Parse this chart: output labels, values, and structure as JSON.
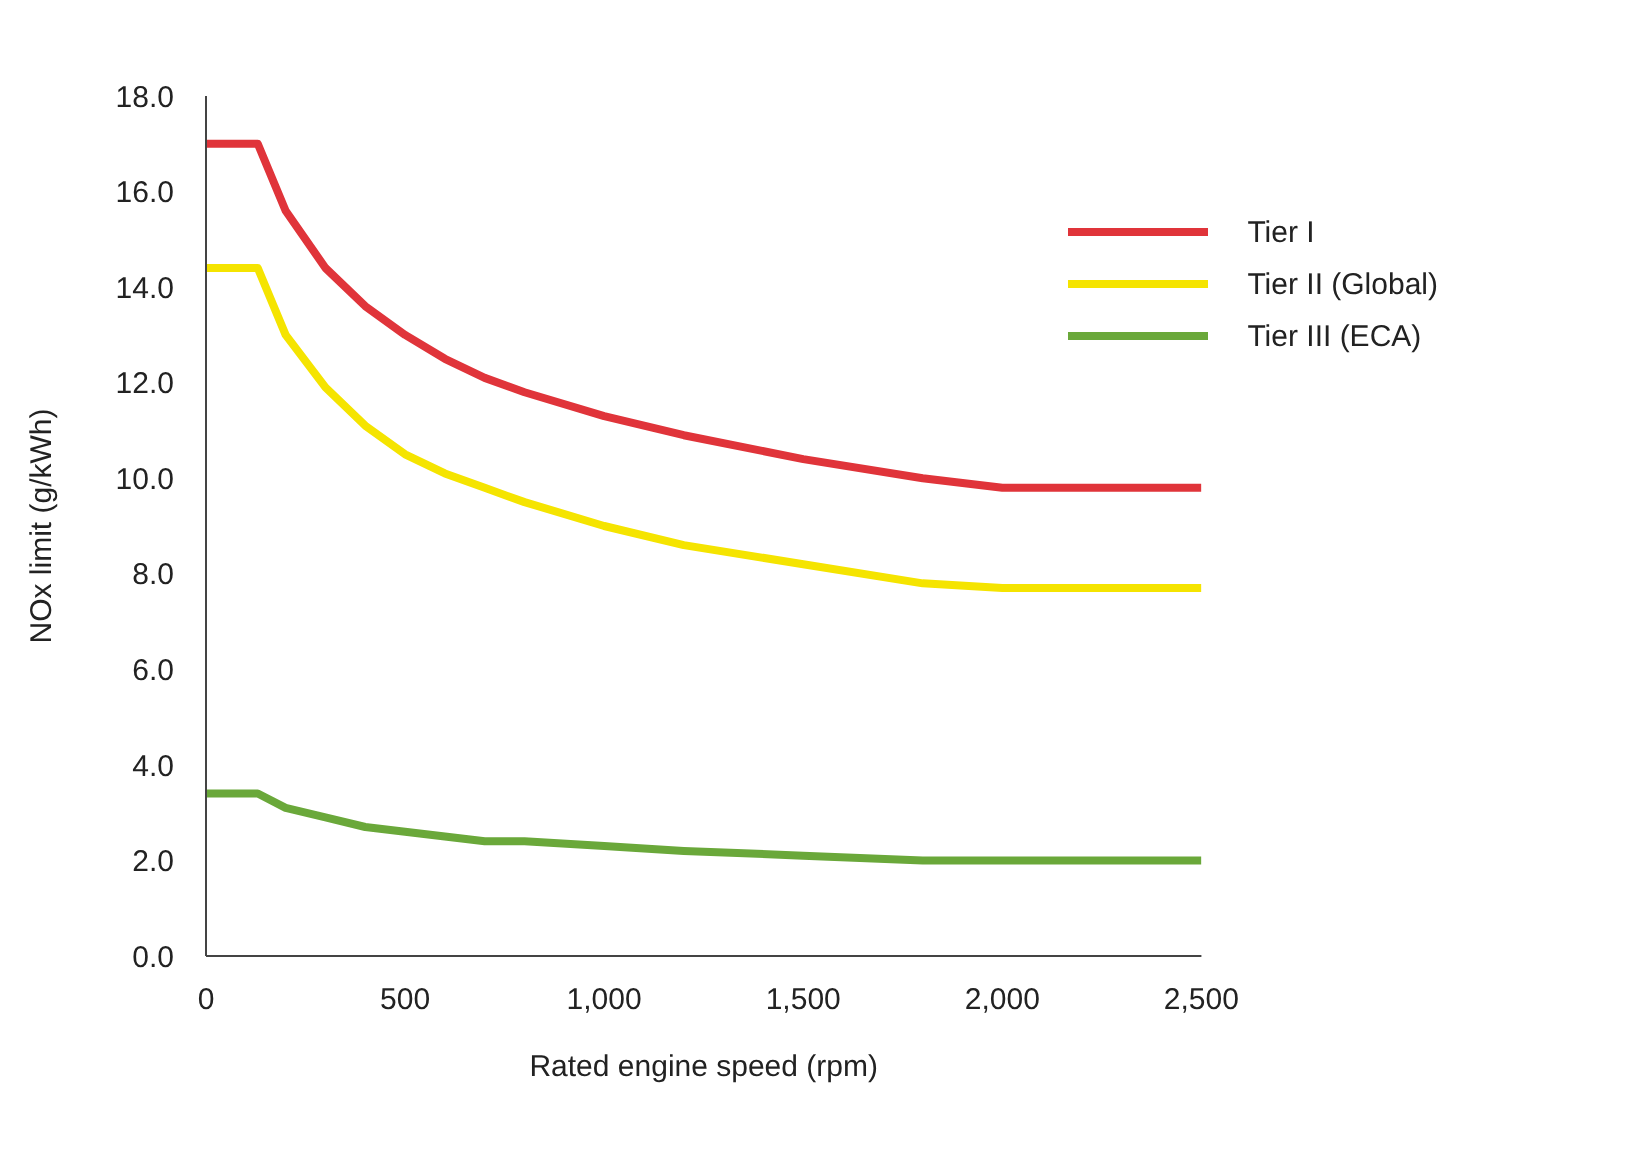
{
  "chart_data": {
    "type": "line",
    "xlabel": "Rated engine speed (rpm)",
    "ylabel": "NOx limit (g/kWh)",
    "xlim": [
      0,
      2500
    ],
    "xticks": [
      0,
      500,
      {
        "value": 1000,
        "label": "1,000"
      },
      {
        "value": 1500,
        "label": "1,500"
      },
      {
        "value": 2000,
        "label": "2,000"
      },
      {
        "value": 2500,
        "label": "2,500"
      }
    ],
    "ylim": [
      0,
      18
    ],
    "yticks": [
      {
        "value": 0,
        "label": "0.0"
      },
      {
        "value": 2,
        "label": "2.0"
      },
      {
        "value": 4,
        "label": "4.0"
      },
      {
        "value": 6,
        "label": "6.0"
      },
      {
        "value": 8,
        "label": "8.0"
      },
      {
        "value": 10,
        "label": "10.0"
      },
      {
        "value": 12,
        "label": "12.0"
      },
      {
        "value": 14,
        "label": "14.0"
      },
      {
        "value": 16,
        "label": "16.0"
      },
      {
        "value": 18,
        "label": "18.0"
      }
    ],
    "x": [
      0,
      130,
      200,
      300,
      400,
      500,
      600,
      700,
      800,
      1000,
      1200,
      1500,
      1800,
      2000,
      2500
    ],
    "series": [
      {
        "name": "Tier I",
        "color": "#e0343a",
        "values": [
          17.0,
          17.0,
          15.6,
          14.4,
          13.6,
          13.0,
          12.5,
          12.1,
          11.8,
          11.3,
          10.9,
          10.4,
          10.0,
          9.8,
          9.8
        ]
      },
      {
        "name": "Tier II (Global)",
        "color": "#f5e400",
        "values": [
          14.4,
          14.4,
          13.0,
          11.9,
          11.1,
          10.5,
          10.1,
          9.8,
          9.5,
          9.0,
          8.6,
          8.2,
          7.8,
          7.7,
          7.7
        ]
      },
      {
        "name": "Tier III (ECA)",
        "color": "#6aa83a",
        "values": [
          3.4,
          3.4,
          3.1,
          2.9,
          2.7,
          2.6,
          2.5,
          2.4,
          2.4,
          2.3,
          2.2,
          2.1,
          2.0,
          2.0,
          2.0
        ]
      }
    ],
    "grid": false,
    "legend": "top right",
    "marker": "none",
    "line_style": "solid"
  }
}
